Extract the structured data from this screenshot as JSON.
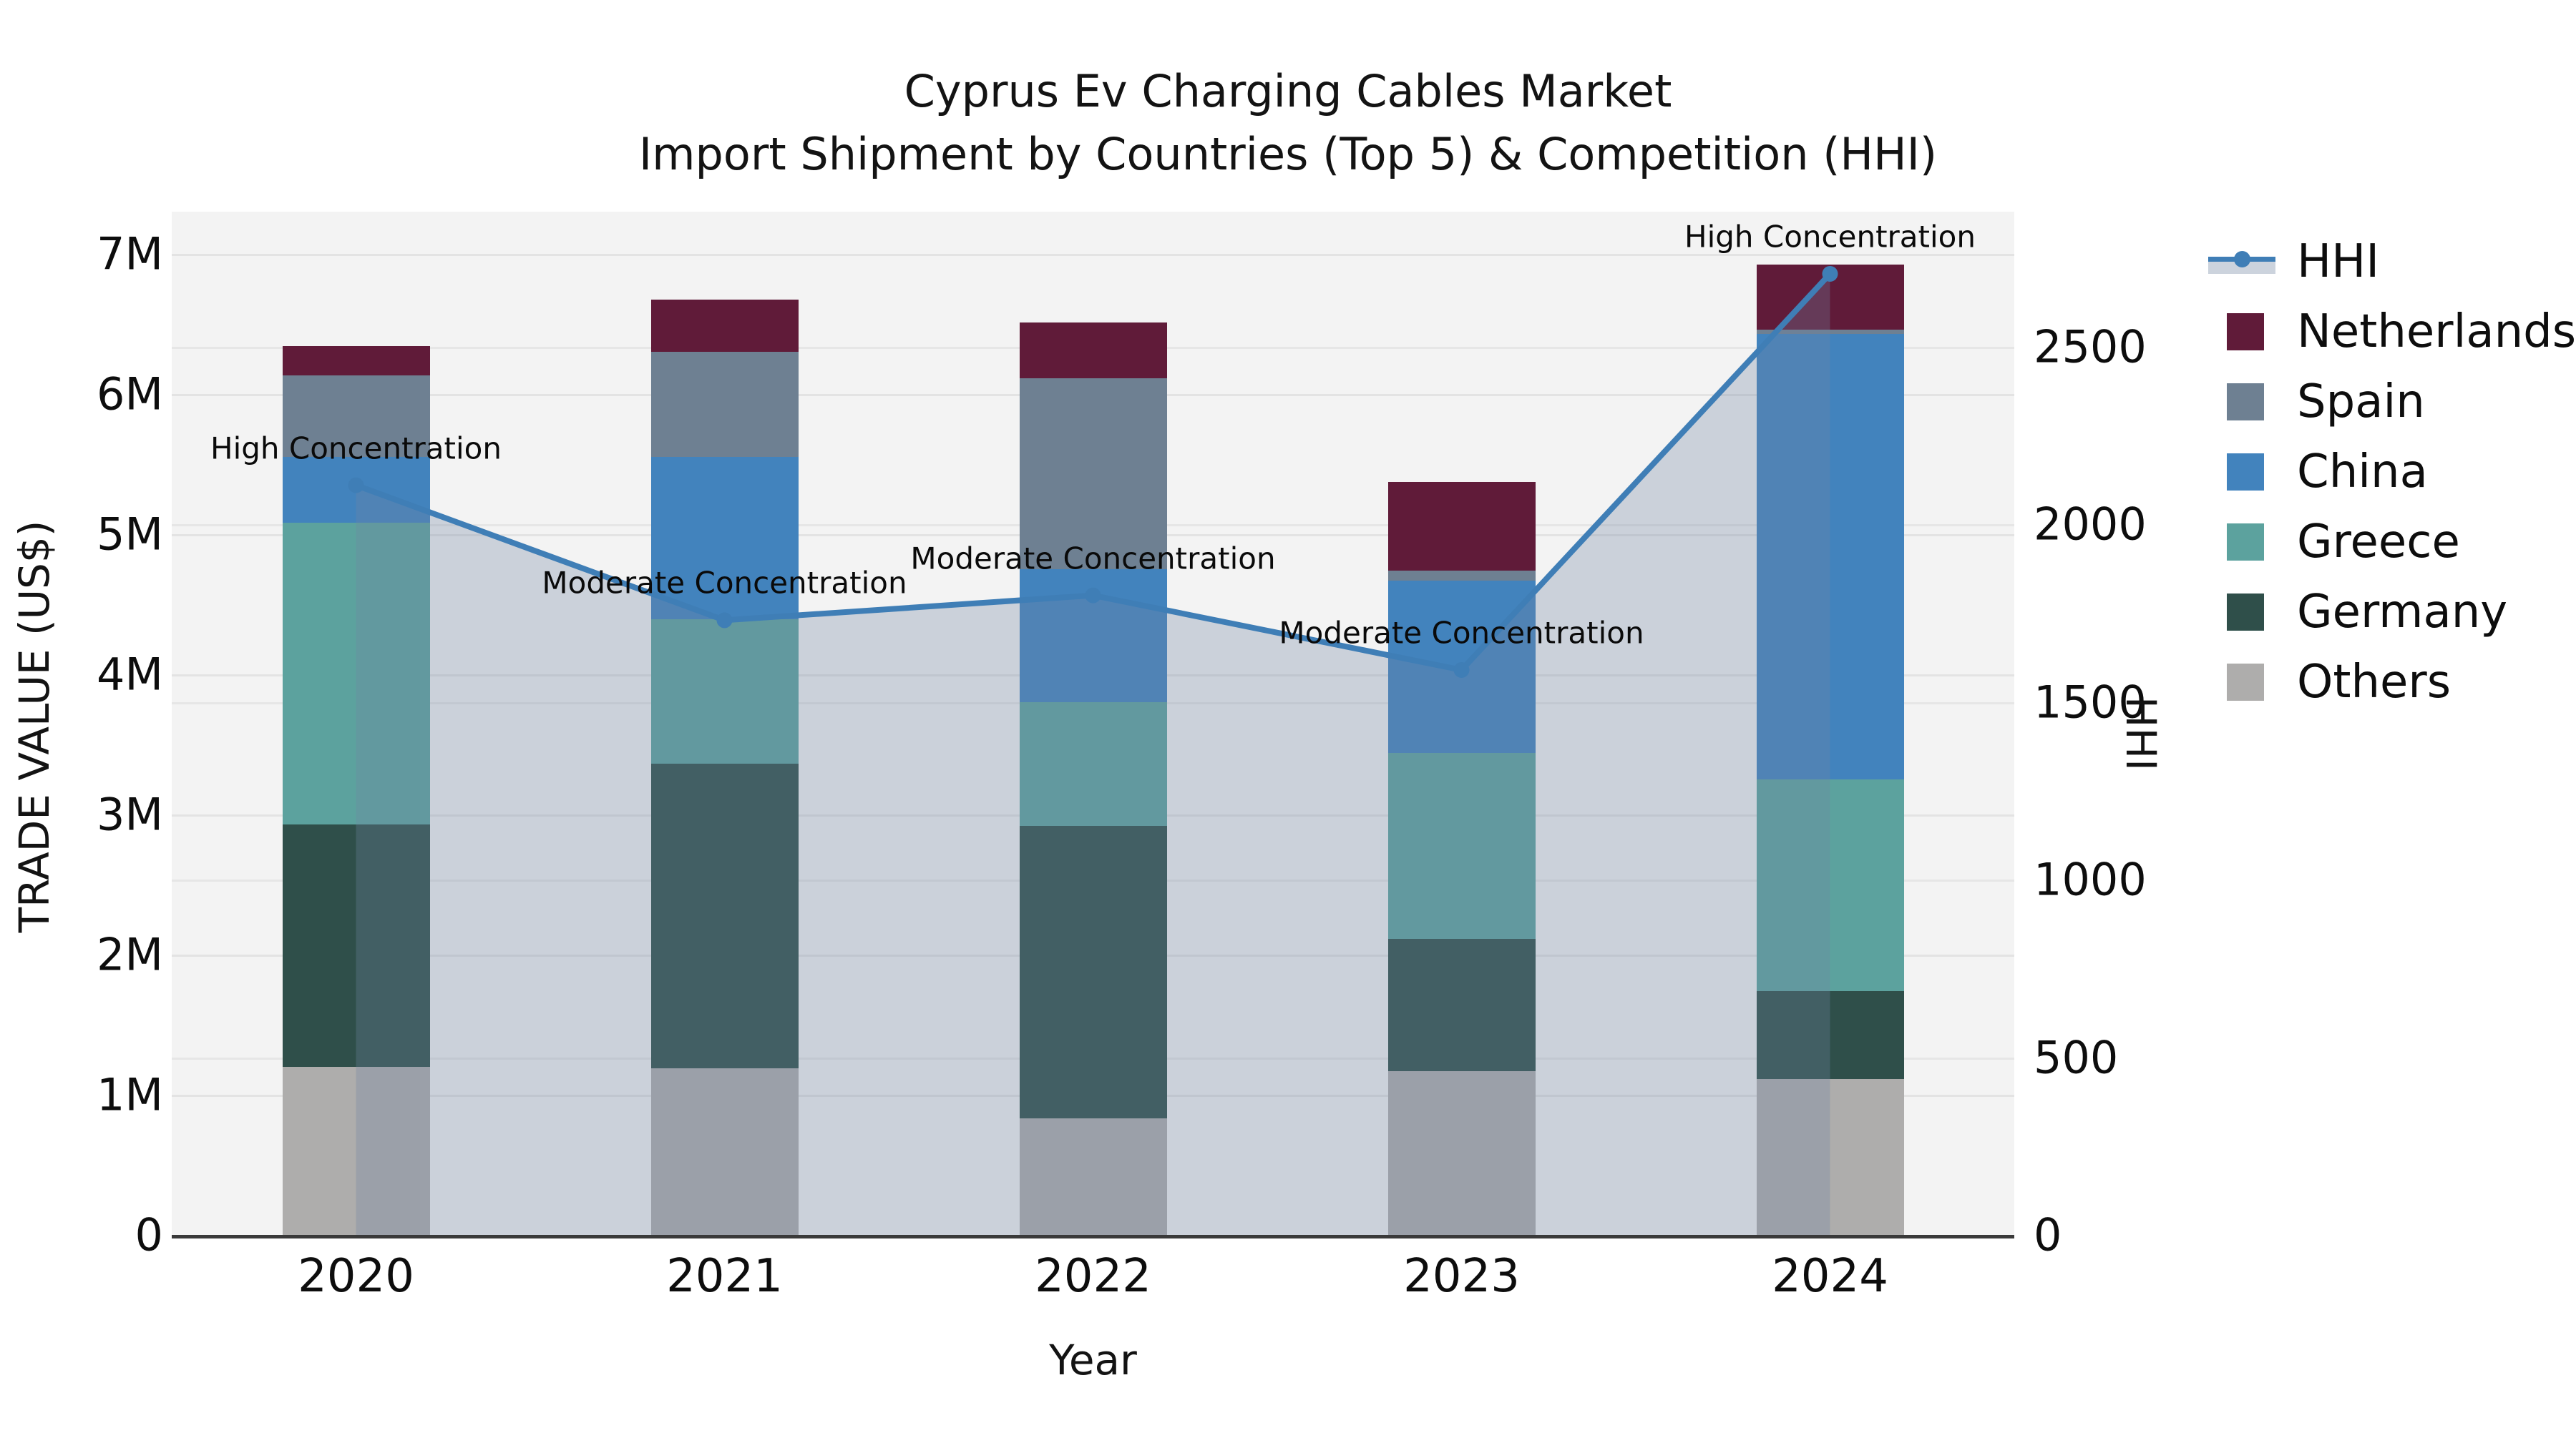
{
  "title": {
    "line1": "Cyprus Ev Charging Cables Market",
    "line2": "Import Shipment by Countries (Top 5) & Competition (HHI)"
  },
  "axes": {
    "y_left_label": "TRADE VALUE (US$)",
    "y_right_label": "HHI",
    "x_label": "Year",
    "y_left_ticks": [
      "0",
      "1M",
      "2M",
      "3M",
      "4M",
      "5M",
      "6M",
      "7M"
    ],
    "y_left_tick_values": [
      0,
      1000000,
      2000000,
      3000000,
      4000000,
      5000000,
      6000000,
      7000000
    ],
    "y_right_ticks": [
      "0",
      "500",
      "1000",
      "1500",
      "2000",
      "2500"
    ],
    "y_right_tick_values": [
      0,
      500,
      1000,
      1500,
      2000,
      2500
    ]
  },
  "legend": [
    {
      "label": "HHI",
      "type": "line",
      "color": "#3f7eb6"
    },
    {
      "label": "Netherlands",
      "type": "patch",
      "color": "#601b39"
    },
    {
      "label": "Spain",
      "type": "patch",
      "color": "#6e8092"
    },
    {
      "label": "China",
      "type": "patch",
      "color": "#4283bd"
    },
    {
      "label": "Greece",
      "type": "patch",
      "color": "#5ca29e"
    },
    {
      "label": "Germany",
      "type": "patch",
      "color": "#2f4f4a"
    },
    {
      "label": "Others",
      "type": "patch",
      "color": "#aeadac"
    }
  ],
  "chart_data": {
    "type": "bar+line",
    "title": "Cyprus Ev Charging Cables Market — Import Shipment by Countries (Top 5) & Competition (HHI)",
    "categories": [
      "2020",
      "2021",
      "2022",
      "2023",
      "2024"
    ],
    "stack_order_bottom_to_top": [
      "Others",
      "Germany",
      "Greece",
      "China",
      "Spain",
      "Netherlands"
    ],
    "series": [
      {
        "name": "Others",
        "color": "#aeadac",
        "values": [
          1200000,
          1190000,
          830000,
          1170000,
          1110000
        ]
      },
      {
        "name": "Germany",
        "color": "#2f4f4a",
        "values": [
          1730000,
          2170000,
          2090000,
          940000,
          630000
        ]
      },
      {
        "name": "Greece",
        "color": "#5ca29e",
        "values": [
          2150000,
          1030000,
          880000,
          1330000,
          1510000
        ]
      },
      {
        "name": "China",
        "color": "#4283bd",
        "values": [
          470000,
          1160000,
          950000,
          1230000,
          3180000
        ]
      },
      {
        "name": "Spain",
        "color": "#6e8092",
        "values": [
          580000,
          750000,
          1360000,
          70000,
          30000
        ]
      },
      {
        "name": "Netherlands",
        "color": "#601b39",
        "values": [
          210000,
          370000,
          400000,
          630000,
          460000
        ]
      }
    ],
    "line_series": {
      "name": "HHI",
      "color": "#3f7eb6",
      "fill_color": "rgba(113,133,163,0.30)",
      "values": [
        2110,
        1730,
        1800,
        1590,
        2705
      ]
    },
    "annotations": [
      {
        "x_index": 0,
        "text": "High Concentration"
      },
      {
        "x_index": 1,
        "text": "Moderate Concentration"
      },
      {
        "x_index": 2,
        "text": "Moderate Concentration"
      },
      {
        "x_index": 3,
        "text": "Moderate Concentration"
      },
      {
        "x_index": 4,
        "text": "High Concentration"
      }
    ],
    "xlabel": "Year",
    "ylabel_left": "TRADE VALUE (US$)",
    "ylabel_right": "HHI",
    "ylim_left": [
      0,
      7300000
    ],
    "ylim_right": [
      0,
      2880
    ],
    "grid": true,
    "legend_position": "right-outside-top",
    "plot_bg": "#f3f3f3"
  }
}
